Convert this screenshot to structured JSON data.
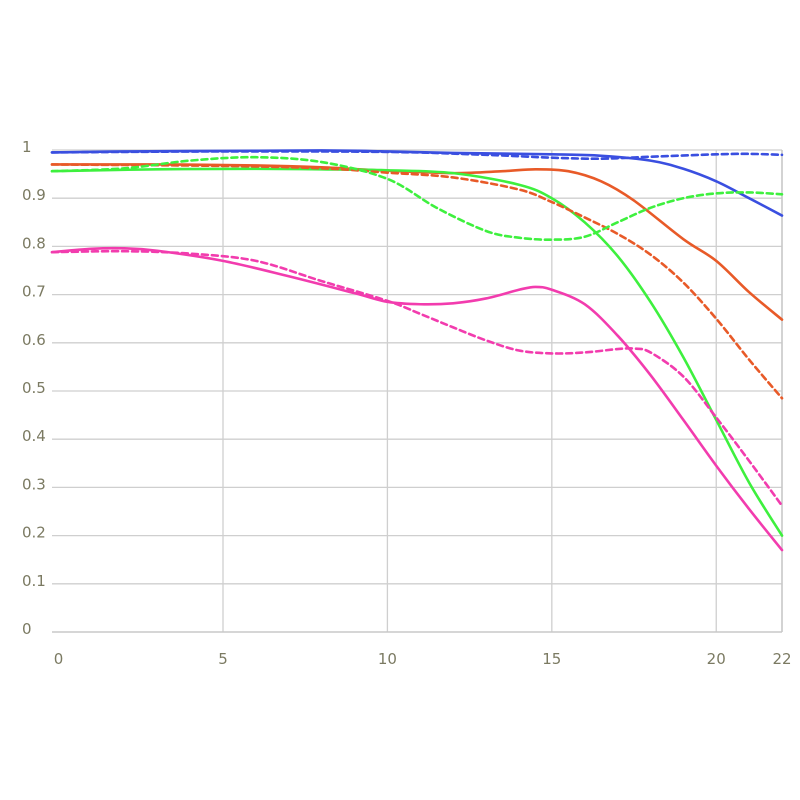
{
  "chart_data": {
    "type": "line",
    "title": "",
    "xlabel": "",
    "ylabel": "",
    "xlim": [
      -0.2,
      22
    ],
    "ylim": [
      0,
      1
    ],
    "grid": true,
    "legend": "none",
    "x_ticks": [
      {
        "value": 0,
        "label": "0"
      },
      {
        "value": 5,
        "label": "5"
      },
      {
        "value": 10,
        "label": "10"
      },
      {
        "value": 15,
        "label": "15"
      },
      {
        "value": 20,
        "label": "20"
      },
      {
        "value": 22,
        "label": "22"
      }
    ],
    "y_ticks": [
      {
        "value": 0,
        "label": "0"
      },
      {
        "value": 0.1,
        "label": "0.1"
      },
      {
        "value": 0.2,
        "label": "0.2"
      },
      {
        "value": 0.3,
        "label": "0.3"
      },
      {
        "value": 0.4,
        "label": "0.4"
      },
      {
        "value": 0.5,
        "label": "0.5"
      },
      {
        "value": 0.6,
        "label": "0.6"
      },
      {
        "value": 0.7,
        "label": "0.7"
      },
      {
        "value": 0.8,
        "label": "0.8"
      },
      {
        "value": 0.9,
        "label": "0.9"
      },
      {
        "value": 1,
        "label": "1"
      }
    ],
    "series": [
      {
        "color": "#3a4fe0",
        "dash": false,
        "x": [
          -0.2,
          2,
          5,
          8,
          10,
          12,
          15,
          16.5,
          18,
          19,
          20,
          21,
          22
        ],
        "y": [
          0.995,
          0.997,
          0.998,
          0.999,
          0.997,
          0.994,
          0.991,
          0.988,
          0.978,
          0.961,
          0.935,
          0.9,
          0.864
        ]
      },
      {
        "color": "#3a4fe0",
        "dash": true,
        "x": [
          -0.2,
          5,
          10,
          13,
          15,
          16.5,
          18,
          20,
          21,
          22
        ],
        "y": [
          0.995,
          0.997,
          0.996,
          0.99,
          0.984,
          0.982,
          0.986,
          0.991,
          0.992,
          0.99
        ]
      },
      {
        "color": "#e85a28",
        "dash": false,
        "x": [
          -0.2,
          3,
          6,
          8,
          10,
          12,
          13.5,
          14.5,
          15.5,
          16.5,
          17.5,
          19,
          20,
          21,
          22
        ],
        "y": [
          0.97,
          0.97,
          0.968,
          0.964,
          0.957,
          0.952,
          0.956,
          0.96,
          0.956,
          0.935,
          0.895,
          0.815,
          0.77,
          0.705,
          0.648
        ]
      },
      {
        "color": "#e85a28",
        "dash": true,
        "x": [
          -0.2,
          5,
          8,
          10,
          12,
          14,
          15,
          16,
          17,
          18,
          19,
          20,
          21,
          22
        ],
        "y": [
          0.97,
          0.967,
          0.962,
          0.953,
          0.943,
          0.918,
          0.892,
          0.86,
          0.826,
          0.783,
          0.725,
          0.65,
          0.565,
          0.485
        ]
      },
      {
        "color": "#3ef03e",
        "dash": false,
        "x": [
          -0.2,
          3,
          6,
          8,
          10,
          12,
          14,
          15,
          16,
          17,
          18,
          19,
          20,
          21,
          22
        ],
        "y": [
          0.956,
          0.96,
          0.961,
          0.96,
          0.958,
          0.952,
          0.928,
          0.9,
          0.85,
          0.78,
          0.685,
          0.57,
          0.44,
          0.31,
          0.2
        ]
      },
      {
        "color": "#3ef03e",
        "dash": true,
        "x": [
          -0.2,
          2,
          4,
          6,
          8,
          10,
          11.5,
          13,
          14,
          15,
          16,
          17,
          18,
          19,
          20,
          21,
          22
        ],
        "y": [
          0.956,
          0.962,
          0.978,
          0.985,
          0.975,
          0.94,
          0.88,
          0.832,
          0.818,
          0.814,
          0.82,
          0.85,
          0.88,
          0.9,
          0.91,
          0.912,
          0.908
        ]
      },
      {
        "color": "#f23cae",
        "dash": false,
        "x": [
          -0.2,
          1,
          2,
          3,
          5,
          7,
          9,
          10,
          11,
          12,
          13,
          14,
          14.5,
          15,
          16,
          17,
          18,
          19,
          20,
          21,
          22
        ],
        "y": [
          0.788,
          0.795,
          0.796,
          0.791,
          0.77,
          0.738,
          0.703,
          0.685,
          0.68,
          0.682,
          0.692,
          0.71,
          0.716,
          0.71,
          0.68,
          0.615,
          0.533,
          0.44,
          0.345,
          0.255,
          0.17
        ]
      },
      {
        "color": "#f23cae",
        "dash": true,
        "x": [
          -0.2,
          2,
          4,
          6,
          8,
          10,
          11,
          12,
          13,
          14,
          15,
          16,
          17,
          17.5,
          18,
          19,
          20,
          21,
          22
        ],
        "y": [
          0.788,
          0.79,
          0.785,
          0.77,
          0.728,
          0.687,
          0.66,
          0.632,
          0.605,
          0.584,
          0.578,
          0.58,
          0.587,
          0.588,
          0.58,
          0.53,
          0.445,
          0.355,
          0.262
        ]
      }
    ]
  }
}
